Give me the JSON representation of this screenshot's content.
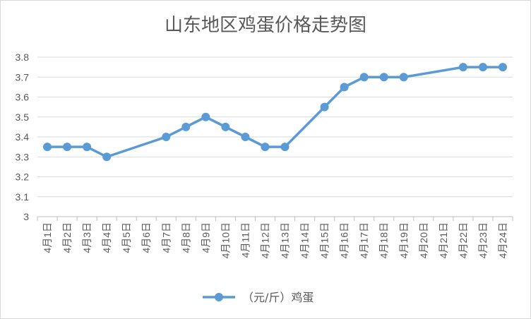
{
  "chart_data": {
    "type": "line",
    "title": "山东地区鸡蛋价格走势图",
    "xlabel": "",
    "ylabel": "",
    "ylim": [
      3,
      3.8
    ],
    "yticks": [
      "3",
      "3.1",
      "3.2",
      "3.3",
      "3.4",
      "3.5",
      "3.6",
      "3.7",
      "3.8"
    ],
    "grid": true,
    "legend_position": "bottom",
    "categories": [
      "4月1日",
      "4月2日",
      "4月3日",
      "4月4日",
      "4月5日",
      "4月6日",
      "4月7日",
      "4月8日",
      "4月9日",
      "4月10日",
      "4月11日",
      "4月12日",
      "4月13日",
      "4月14日",
      "4月15日",
      "4月16日",
      "4月17日",
      "4月18日",
      "4月19日",
      "4月20日",
      "4月21日",
      "4月22日",
      "4月23日",
      "4月24日"
    ],
    "series": [
      {
        "name": "（元/斤）鸡蛋",
        "color": "#5b9bd5",
        "values": [
          3.35,
          3.35,
          3.35,
          3.3,
          null,
          null,
          3.4,
          3.45,
          3.5,
          3.45,
          3.4,
          3.35,
          3.35,
          null,
          3.55,
          3.65,
          3.7,
          3.7,
          3.7,
          null,
          null,
          3.75,
          3.75,
          3.75
        ]
      }
    ]
  }
}
